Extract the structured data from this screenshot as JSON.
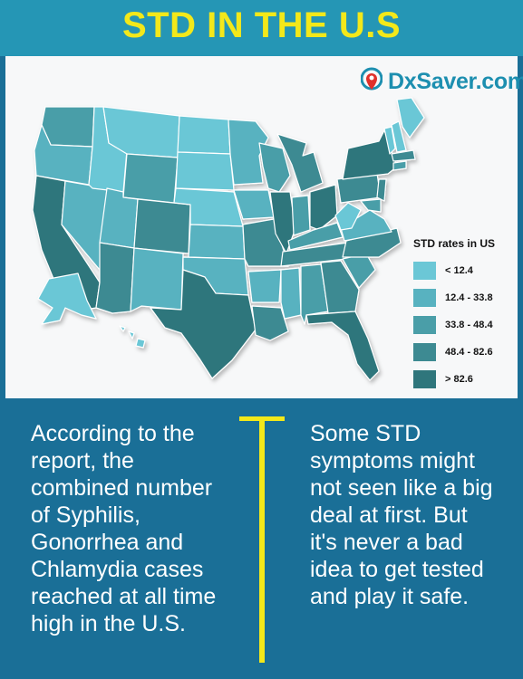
{
  "title": "STD IN THE U.S",
  "logo": {
    "text": "DxSaver.com",
    "icon": "map-pin-icon"
  },
  "legend": {
    "title": "STD rates in US",
    "items": [
      {
        "label": "< 12.4",
        "color": "#6bc7d6"
      },
      {
        "label": "12.4 - 33.8",
        "color": "#58b2c0"
      },
      {
        "label": "33.8 - 48.4",
        "color": "#4a9ea8"
      },
      {
        "label": "48.4 - 82.6",
        "color": "#3d8a92"
      },
      {
        "label": "> 82.6",
        "color": "#2f767c"
      }
    ]
  },
  "left_text": "According to the report, the combined number of Syphilis, Gonorrhea and Chlamydia cases reached at all time high in the U.S.",
  "right_text": "Some STD symptoms might not seen like a big deal at first. But it's never a bad idea to get tested and play it safe.",
  "colors": {
    "header": "#2596b5",
    "title": "#f3e81a",
    "bottom": "#1a6f97",
    "divider": "#f3e81a"
  }
}
